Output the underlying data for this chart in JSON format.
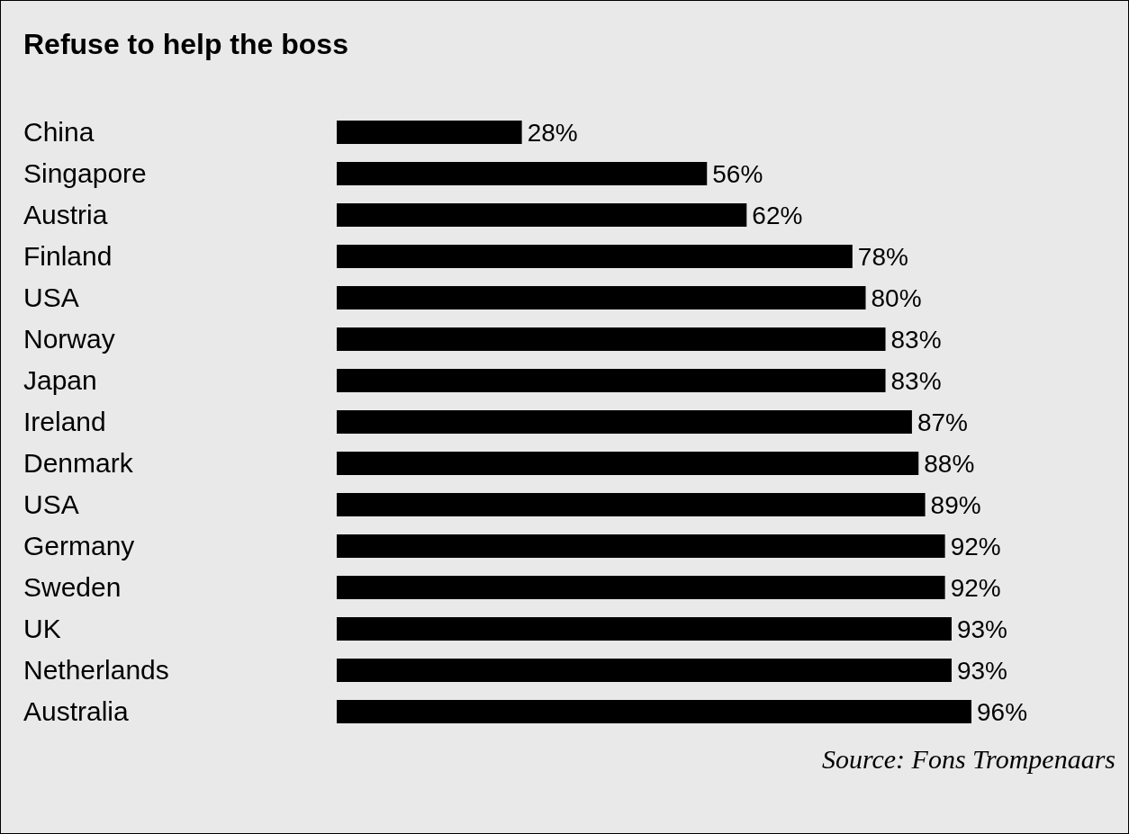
{
  "chart_data": {
    "type": "bar",
    "orientation": "horizontal",
    "title": "Refuse to help the boss",
    "categories": [
      "China",
      "Singapore",
      "Austria",
      "Finland",
      "USA",
      "Norway",
      "Japan",
      "Ireland",
      "Denmark",
      "USA",
      "Germany",
      "Sweden",
      "UK",
      "Netherlands",
      "Australia"
    ],
    "values": [
      28,
      56,
      62,
      78,
      80,
      83,
      83,
      87,
      88,
      89,
      92,
      92,
      93,
      93,
      96
    ],
    "value_labels": [
      "28%",
      "56%",
      "62%",
      "78%",
      "80%",
      "83%",
      "83%",
      "87%",
      "88%",
      "89%",
      "92%",
      "92%",
      "93%",
      "93%",
      "96%"
    ],
    "color": "#000000",
    "annotations": [
      "Source: Fons Trompenaars"
    ]
  }
}
